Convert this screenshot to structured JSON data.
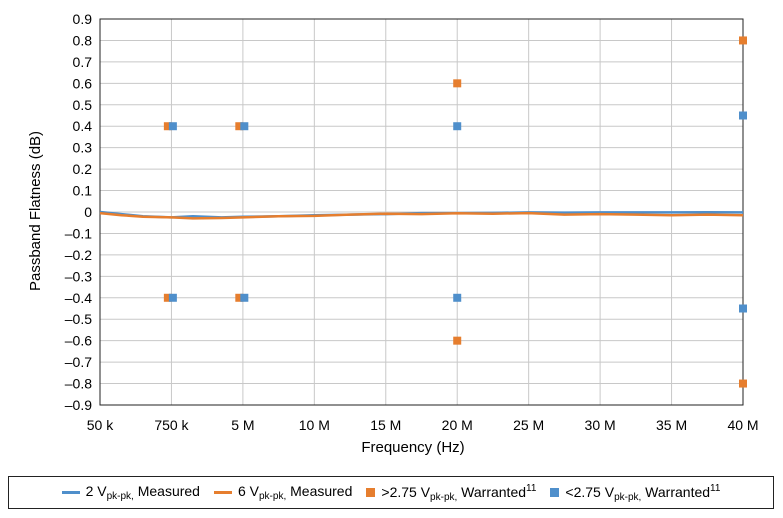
{
  "colors": {
    "series_blue": "#4f8fcb",
    "series_orange": "#e67e2e",
    "grid": "#c8c8c8",
    "axis": "#222222"
  },
  "chart_data": {
    "type": "line",
    "xlabel": "Frequency (Hz)",
    "ylabel": "Passband Flatness (dB)",
    "x_tick_labels": [
      "50 k",
      "750 k",
      "5 M",
      "10 M",
      "15 M",
      "20 M",
      "25 M",
      "30 M",
      "35 M",
      "40 M"
    ],
    "y_tick_labels": [
      "0.9",
      "0.8",
      "0.7",
      "0.6",
      "0.5",
      "0.4",
      "0.3",
      "0.2",
      "0.1",
      "0",
      "–0.1",
      "–0.2",
      "–0.3",
      "–0.4",
      "–0.5",
      "–0.6",
      "–0.7",
      "–0.8",
      "–0.9"
    ],
    "ylim": [
      -0.9,
      0.9
    ],
    "x_tick_index_range": [
      0,
      9
    ],
    "grid": true,
    "legend_position": "bottom",
    "series": [
      {
        "name": "2 V pk-pk, Measured",
        "kind": "line",
        "color": "#4f8fcb",
        "points": [
          [
            0,
            0
          ],
          [
            0.3,
            -0.01
          ],
          [
            0.6,
            -0.02
          ],
          [
            1,
            -0.025
          ],
          [
            1.3,
            -0.02
          ],
          [
            1.7,
            -0.025
          ],
          [
            2,
            -0.022
          ],
          [
            2.5,
            -0.02
          ],
          [
            3,
            -0.015
          ],
          [
            3.5,
            -0.012
          ],
          [
            4,
            -0.01
          ],
          [
            4.5,
            -0.005
          ],
          [
            5,
            -0.005
          ],
          [
            5.5,
            -0.004
          ],
          [
            6,
            -0.002
          ],
          [
            6.5,
            -0.003
          ],
          [
            7,
            -0.002
          ],
          [
            7.5,
            -0.002
          ],
          [
            8,
            -0.002
          ],
          [
            8.5,
            -0.001
          ],
          [
            9,
            -0.002
          ]
        ]
      },
      {
        "name": "6 V pk-pk, Measured",
        "kind": "line",
        "color": "#e67e2e",
        "points": [
          [
            0,
            -0.005
          ],
          [
            0.3,
            -0.015
          ],
          [
            0.6,
            -0.022
          ],
          [
            1,
            -0.025
          ],
          [
            1.3,
            -0.03
          ],
          [
            1.7,
            -0.028
          ],
          [
            2,
            -0.025
          ],
          [
            2.5,
            -0.02
          ],
          [
            3,
            -0.018
          ],
          [
            3.5,
            -0.012
          ],
          [
            4,
            -0.008
          ],
          [
            4.5,
            -0.01
          ],
          [
            5,
            -0.006
          ],
          [
            5.5,
            -0.008
          ],
          [
            6,
            -0.005
          ],
          [
            6.5,
            -0.012
          ],
          [
            7,
            -0.01
          ],
          [
            7.5,
            -0.012
          ],
          [
            8,
            -0.015
          ],
          [
            8.5,
            -0.012
          ],
          [
            9,
            -0.015
          ]
        ]
      },
      {
        "name": ">2.75 V pk-pk, Warranted",
        "kind": "marker",
        "color": "#e67e2e",
        "points": [
          [
            0.95,
            0.4
          ],
          [
            0.95,
            -0.4
          ],
          [
            1.95,
            0.4
          ],
          [
            1.95,
            -0.4
          ],
          [
            5,
            0.6
          ],
          [
            5,
            -0.6
          ],
          [
            9,
            0.8
          ],
          [
            9,
            -0.8
          ]
        ]
      },
      {
        "name": "<2.75 V pk-pk, Warranted",
        "kind": "marker",
        "color": "#4f8fcb",
        "points": [
          [
            1.02,
            0.4
          ],
          [
            1.02,
            -0.4
          ],
          [
            2.02,
            0.4
          ],
          [
            2.02,
            -0.4
          ],
          [
            5,
            0.4
          ],
          [
            5,
            -0.4
          ],
          [
            9,
            0.45
          ],
          [
            9,
            -0.45
          ]
        ]
      }
    ]
  },
  "legend": [
    {
      "main": "2 V",
      "sub": "pk-pk,",
      "rest": " Measured",
      "sup": ""
    },
    {
      "main": "6 V",
      "sub": "pk-pk,",
      "rest": " Measured",
      "sup": ""
    },
    {
      "main": ">2.75 V",
      "sub": "pk-pk,",
      "rest": " Warranted",
      "sup": "11"
    },
    {
      "main": "<2.75 V",
      "sub": "pk-pk,",
      "rest": " Warranted",
      "sup": "11"
    }
  ]
}
